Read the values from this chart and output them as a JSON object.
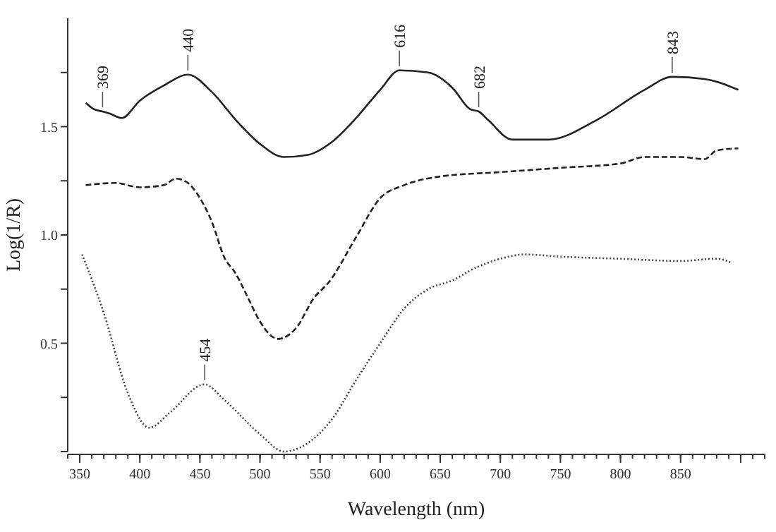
{
  "chart_data": {
    "type": "line",
    "xlabel": "Wavelength (nm)",
    "ylabel": "Log(1/R)",
    "xlim": [
      340,
      920
    ],
    "xticks": [
      350,
      400,
      450,
      500,
      550,
      600,
      650,
      700,
      750,
      800,
      850,
      {
        "value": 900,
        "label": null
      }
    ],
    "ylim": [
      0,
      2
    ],
    "yticks": [
      {
        "value": 0,
        "label": null
      },
      {
        "value": 0.25,
        "label": null
      },
      {
        "value": 0.5,
        "label": "0.5"
      },
      {
        "value": 0.75,
        "label": null
      },
      {
        "value": 1,
        "label": "1.0"
      },
      {
        "value": 1.25,
        "label": null
      },
      {
        "value": 1.5,
        "label": "1.5"
      },
      {
        "value": 1.75,
        "label": null
      }
    ],
    "marker": "none",
    "series": [
      {
        "color": "#222222",
        "line_style": "solid",
        "x": [
          355,
          362,
          369,
          375,
          385,
          400,
          420,
          440,
          460,
          480,
          500,
          520,
          540,
          560,
          580,
          600,
          616,
          640,
          660,
          675,
          682,
          690,
          710,
          740,
          780,
          820,
          843,
          870,
          898
        ],
        "values": [
          1.61,
          1.58,
          1.57,
          1.56,
          1.54,
          1.62,
          1.69,
          1.74,
          1.66,
          1.53,
          1.42,
          1.36,
          1.37,
          1.43,
          1.54,
          1.67,
          1.76,
          1.75,
          1.68,
          1.58,
          1.57,
          1.53,
          1.44,
          1.44,
          1.53,
          1.67,
          1.73,
          1.72,
          1.67
        ]
      },
      {
        "color": "#222222",
        "line_style": "dashed",
        "x": [
          355,
          380,
          400,
          420,
          430,
          440,
          450,
          460,
          470,
          480,
          490,
          500,
          515,
          530,
          545,
          557,
          580,
          600,
          620,
          650,
          700,
          750,
          800,
          820,
          850,
          870,
          880,
          898
        ],
        "values": [
          1.23,
          1.24,
          1.22,
          1.23,
          1.26,
          1.24,
          1.17,
          1.06,
          0.9,
          0.82,
          0.71,
          0.6,
          0.52,
          0.57,
          0.71,
          0.78,
          0.99,
          1.17,
          1.23,
          1.27,
          1.29,
          1.31,
          1.33,
          1.36,
          1.36,
          1.35,
          1.39,
          1.4
        ]
      },
      {
        "color": "#444444",
        "line_style": "dotted",
        "x": [
          352,
          370,
          390,
          408,
          425,
          454,
          470,
          500,
          520,
          540,
          560,
          580,
          600,
          620,
          640,
          660,
          680,
          700,
          720,
          750,
          800,
          850,
          880,
          893
        ],
        "values": [
          0.91,
          0.64,
          0.27,
          0.11,
          0.18,
          0.31,
          0.24,
          0.08,
          0.0,
          0.04,
          0.15,
          0.33,
          0.5,
          0.66,
          0.75,
          0.79,
          0.85,
          0.89,
          0.91,
          0.9,
          0.89,
          0.88,
          0.89,
          0.87
        ]
      }
    ],
    "annotations": [
      {
        "text": "369",
        "x": 369,
        "y": 1.57
      },
      {
        "text": "440",
        "x": 440,
        "y": 1.74
      },
      {
        "text": "616",
        "x": 616,
        "y": 1.76
      },
      {
        "text": "682",
        "x": 682,
        "y": 1.57
      },
      {
        "text": "843",
        "x": 843,
        "y": 1.73
      },
      {
        "text": "454",
        "x": 454,
        "y": 0.31
      }
    ]
  }
}
